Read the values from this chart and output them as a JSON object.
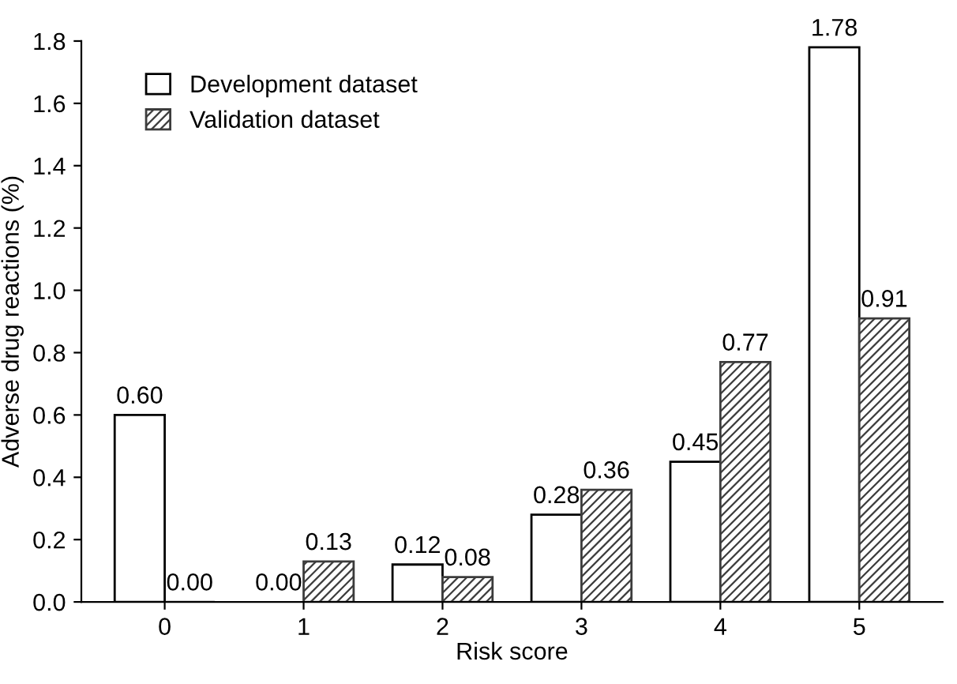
{
  "chart_data": {
    "type": "bar",
    "xlabel": "Risk score",
    "ylabel": "Adverse drug reactions (%)",
    "categories": [
      "0",
      "1",
      "2",
      "3",
      "4",
      "5"
    ],
    "series": [
      {
        "name": "Development dataset",
        "color": "#ffffff",
        "values": [
          0.6,
          0.0,
          0.12,
          0.28,
          0.45,
          1.78
        ],
        "value_labels": [
          "0.60",
          "0.00",
          "0.12",
          "0.28",
          "0.45",
          "1.78"
        ]
      },
      {
        "name": "Validation dataset",
        "color": "#3c3c3c",
        "values": [
          0.0,
          0.13,
          0.08,
          0.36,
          0.77,
          0.91
        ],
        "value_labels": [
          "0.00",
          "0.13",
          "0.08",
          "0.36",
          "0.77",
          "0.91"
        ]
      }
    ],
    "ylim": [
      0,
      1.8
    ],
    "yticks": [
      {
        "value": 0,
        "label": "0.0"
      },
      {
        "value": 0.2,
        "label": "0.2"
      },
      {
        "value": 0.4,
        "label": "0.4"
      },
      {
        "value": 0.6,
        "label": "0.6"
      },
      {
        "value": 0.8,
        "label": "0.8"
      },
      {
        "value": 1.0,
        "label": "1.0"
      },
      {
        "value": 1.2,
        "label": "1.2"
      },
      {
        "value": 1.4,
        "label": "1.4"
      },
      {
        "value": 1.6,
        "label": "1.6"
      },
      {
        "value": 1.8,
        "label": "1.8"
      }
    ],
    "legend": "top left",
    "grid": false
  }
}
